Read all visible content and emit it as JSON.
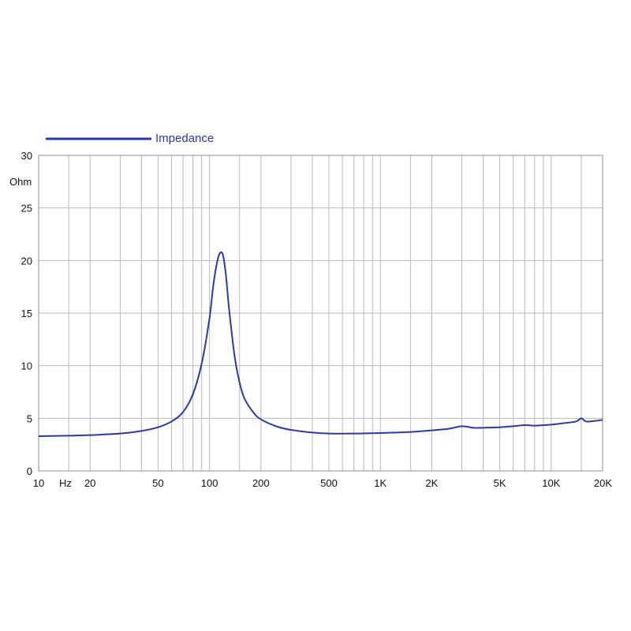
{
  "chart_data": {
    "type": "line",
    "x_scale": "log",
    "xlim": [
      10,
      20000
    ],
    "ylim": [
      0,
      30
    ],
    "grid": true,
    "legend_position": "top-left",
    "xlabel": "Hz",
    "ylabel": "Ohm",
    "colors": {
      "series": "#2a3aa8",
      "grid": "#b9b9b9",
      "frame": "#8c8c8c"
    },
    "x_ticks": [
      {
        "value": 10,
        "label": "10"
      },
      {
        "value": 20,
        "label": "20"
      },
      {
        "value": 50,
        "label": "50"
      },
      {
        "value": 100,
        "label": "100"
      },
      {
        "value": 200,
        "label": "200"
      },
      {
        "value": 500,
        "label": "500"
      },
      {
        "value": 1000,
        "label": "1K"
      },
      {
        "value": 2000,
        "label": "2K"
      },
      {
        "value": 5000,
        "label": "5K"
      },
      {
        "value": 10000,
        "label": "10K"
      },
      {
        "value": 20000,
        "label": "20K"
      }
    ],
    "x_grid": [
      10,
      15,
      20,
      30,
      40,
      50,
      60,
      70,
      80,
      90,
      100,
      150,
      200,
      300,
      400,
      500,
      600,
      700,
      800,
      900,
      1000,
      1500,
      2000,
      3000,
      4000,
      5000,
      6000,
      7000,
      8000,
      9000,
      10000,
      15000,
      20000
    ],
    "y_ticks": [
      {
        "value": 0,
        "label": "0"
      },
      {
        "value": 5,
        "label": "5"
      },
      {
        "value": 10,
        "label": "10"
      },
      {
        "value": 15,
        "label": "15"
      },
      {
        "value": 20,
        "label": "20"
      },
      {
        "value": 25,
        "label": "25"
      },
      {
        "value": 30,
        "label": "30"
      }
    ],
    "series": [
      {
        "name": "Impedance",
        "x": [
          10,
          15,
          20,
          30,
          40,
          50,
          60,
          70,
          80,
          90,
          100,
          105,
          110,
          115,
          120,
          125,
          130,
          140,
          150,
          160,
          180,
          200,
          250,
          300,
          400,
          500,
          700,
          1000,
          1500,
          2000,
          2500,
          3000,
          3500,
          4000,
          5000,
          6000,
          7000,
          8000,
          9000,
          10000,
          12000,
          14000,
          15000,
          16000,
          18000,
          20000
        ],
        "y": [
          3.3,
          3.35,
          3.4,
          3.55,
          3.8,
          4.15,
          4.7,
          5.6,
          7.3,
          10.2,
          14.5,
          17.5,
          19.6,
          20.7,
          20.5,
          18.5,
          15.5,
          11.0,
          8.4,
          6.9,
          5.6,
          4.9,
          4.2,
          3.9,
          3.65,
          3.55,
          3.55,
          3.6,
          3.7,
          3.85,
          4.0,
          4.25,
          4.1,
          4.1,
          4.15,
          4.25,
          4.35,
          4.3,
          4.35,
          4.4,
          4.55,
          4.7,
          5.0,
          4.7,
          4.75,
          4.85
        ]
      }
    ]
  }
}
